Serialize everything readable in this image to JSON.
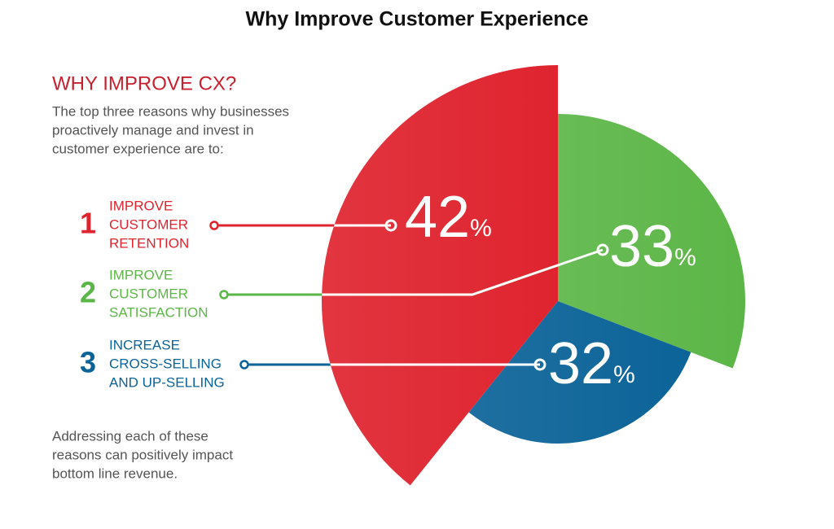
{
  "chart_data": {
    "type": "pie",
    "title": "Why Improve Customer Experience",
    "heading": "WHY IMPROVE CX?",
    "intro": [
      "The top three reasons why businesses",
      "proactively manage and invest in",
      "customer experience are to:"
    ],
    "ranks": [
      1,
      2,
      3
    ],
    "categories": [
      [
        "IMPROVE",
        "CUSTOMER",
        "RETENTION"
      ],
      [
        "IMPROVE",
        "CUSTOMER",
        "SATISFACTION"
      ],
      [
        "INCREASE",
        "CROSS-SELLING",
        "AND UP-SELLING"
      ]
    ],
    "values": [
      42,
      33,
      32
    ],
    "value_labels": [
      "42%",
      "33%",
      "32%"
    ],
    "colors": [
      "#df242f",
      "#5cb647",
      "#0b6398"
    ],
    "footer": [
      "Addressing each of these",
      "reasons can positively impact",
      "bottom line revenue."
    ]
  }
}
